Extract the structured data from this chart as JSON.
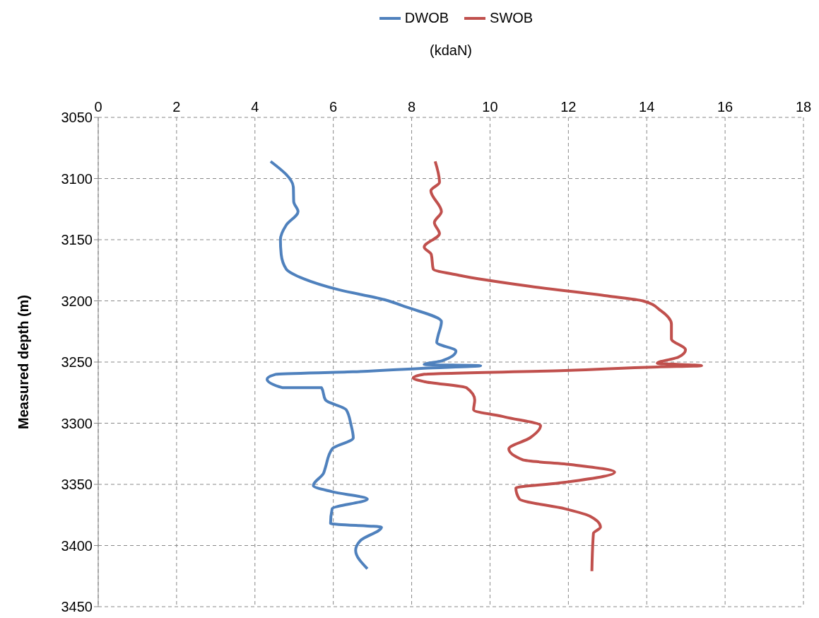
{
  "chart_data": {
    "type": "line",
    "xlabel": "(kdaN)",
    "ylabel": "Measured depth (m)",
    "xlim": [
      0,
      18
    ],
    "xticks": [
      0,
      2,
      4,
      6,
      8,
      10,
      12,
      14,
      16,
      18
    ],
    "ylim": [
      3450,
      3050
    ],
    "yticks": [
      3050,
      3100,
      3150,
      3200,
      3250,
      3300,
      3350,
      3400,
      3450
    ],
    "grid": true,
    "legend": "top",
    "marker": "none",
    "line_style": "solid",
    "series": [
      {
        "name": "DWOB",
        "color": "#4f81bd",
        "x": [
          4.4,
          4.98,
          4.99,
          5.1,
          4.8,
          4.65,
          4.67,
          4.8,
          5.25,
          6.15,
          7.3,
          7.86,
          8.76,
          8.67,
          8.64,
          9.13,
          8.77,
          8.32,
          9.76,
          8.32,
          6.5,
          4.53,
          4.31,
          4.71,
          5.7,
          5.8,
          6.33,
          6.45,
          6.51,
          5.97,
          5.8,
          5.75,
          5.49,
          5.97,
          6.87,
          5.97,
          5.93,
          7.23,
          6.69,
          6.57,
          6.87
        ],
        "values": [
          3086,
          3107,
          3119,
          3127,
          3138,
          3150,
          3162,
          3174,
          3182,
          3191,
          3199,
          3205,
          3217,
          3229,
          3234,
          3241,
          3249,
          3252,
          3253,
          3255,
          3258,
          3260,
          3264,
          3271,
          3271,
          3281,
          3289,
          3301,
          3312,
          3321,
          3336,
          3341,
          3351,
          3356,
          3362,
          3370,
          3382,
          3385,
          3396,
          3404,
          3419
        ]
      },
      {
        "name": "SWOB",
        "color": "#c0504d",
        "x": [
          8.6,
          8.71,
          8.49,
          8.76,
          8.58,
          8.71,
          8.32,
          8.5,
          8.55,
          9.2,
          11.0,
          13.0,
          13.9,
          14.36,
          14.63,
          14.63,
          14.99,
          14.81,
          14.27,
          15.4,
          14.27,
          11.92,
          8.32,
          8.04,
          8.32,
          9.4,
          9.61,
          9.58,
          10.39,
          11.29,
          11.02,
          10.48,
          10.84,
          12.1,
          13.18,
          11.74,
          10.66,
          10.75,
          11.92,
          12.55,
          12.82,
          12.64,
          12.6
        ],
        "values": [
          3086,
          3103,
          3110,
          3127,
          3136,
          3145,
          3156,
          3162,
          3174,
          3179,
          3188,
          3196,
          3200,
          3208,
          3219,
          3231,
          3240,
          3246,
          3251,
          3253,
          3254,
          3257,
          3260,
          3263,
          3266,
          3271,
          3281,
          3289,
          3295,
          3302,
          3312,
          3321,
          3330,
          3334,
          3340,
          3349,
          3353,
          3362,
          3370,
          3376,
          3385,
          3390,
          3421
        ]
      }
    ]
  }
}
